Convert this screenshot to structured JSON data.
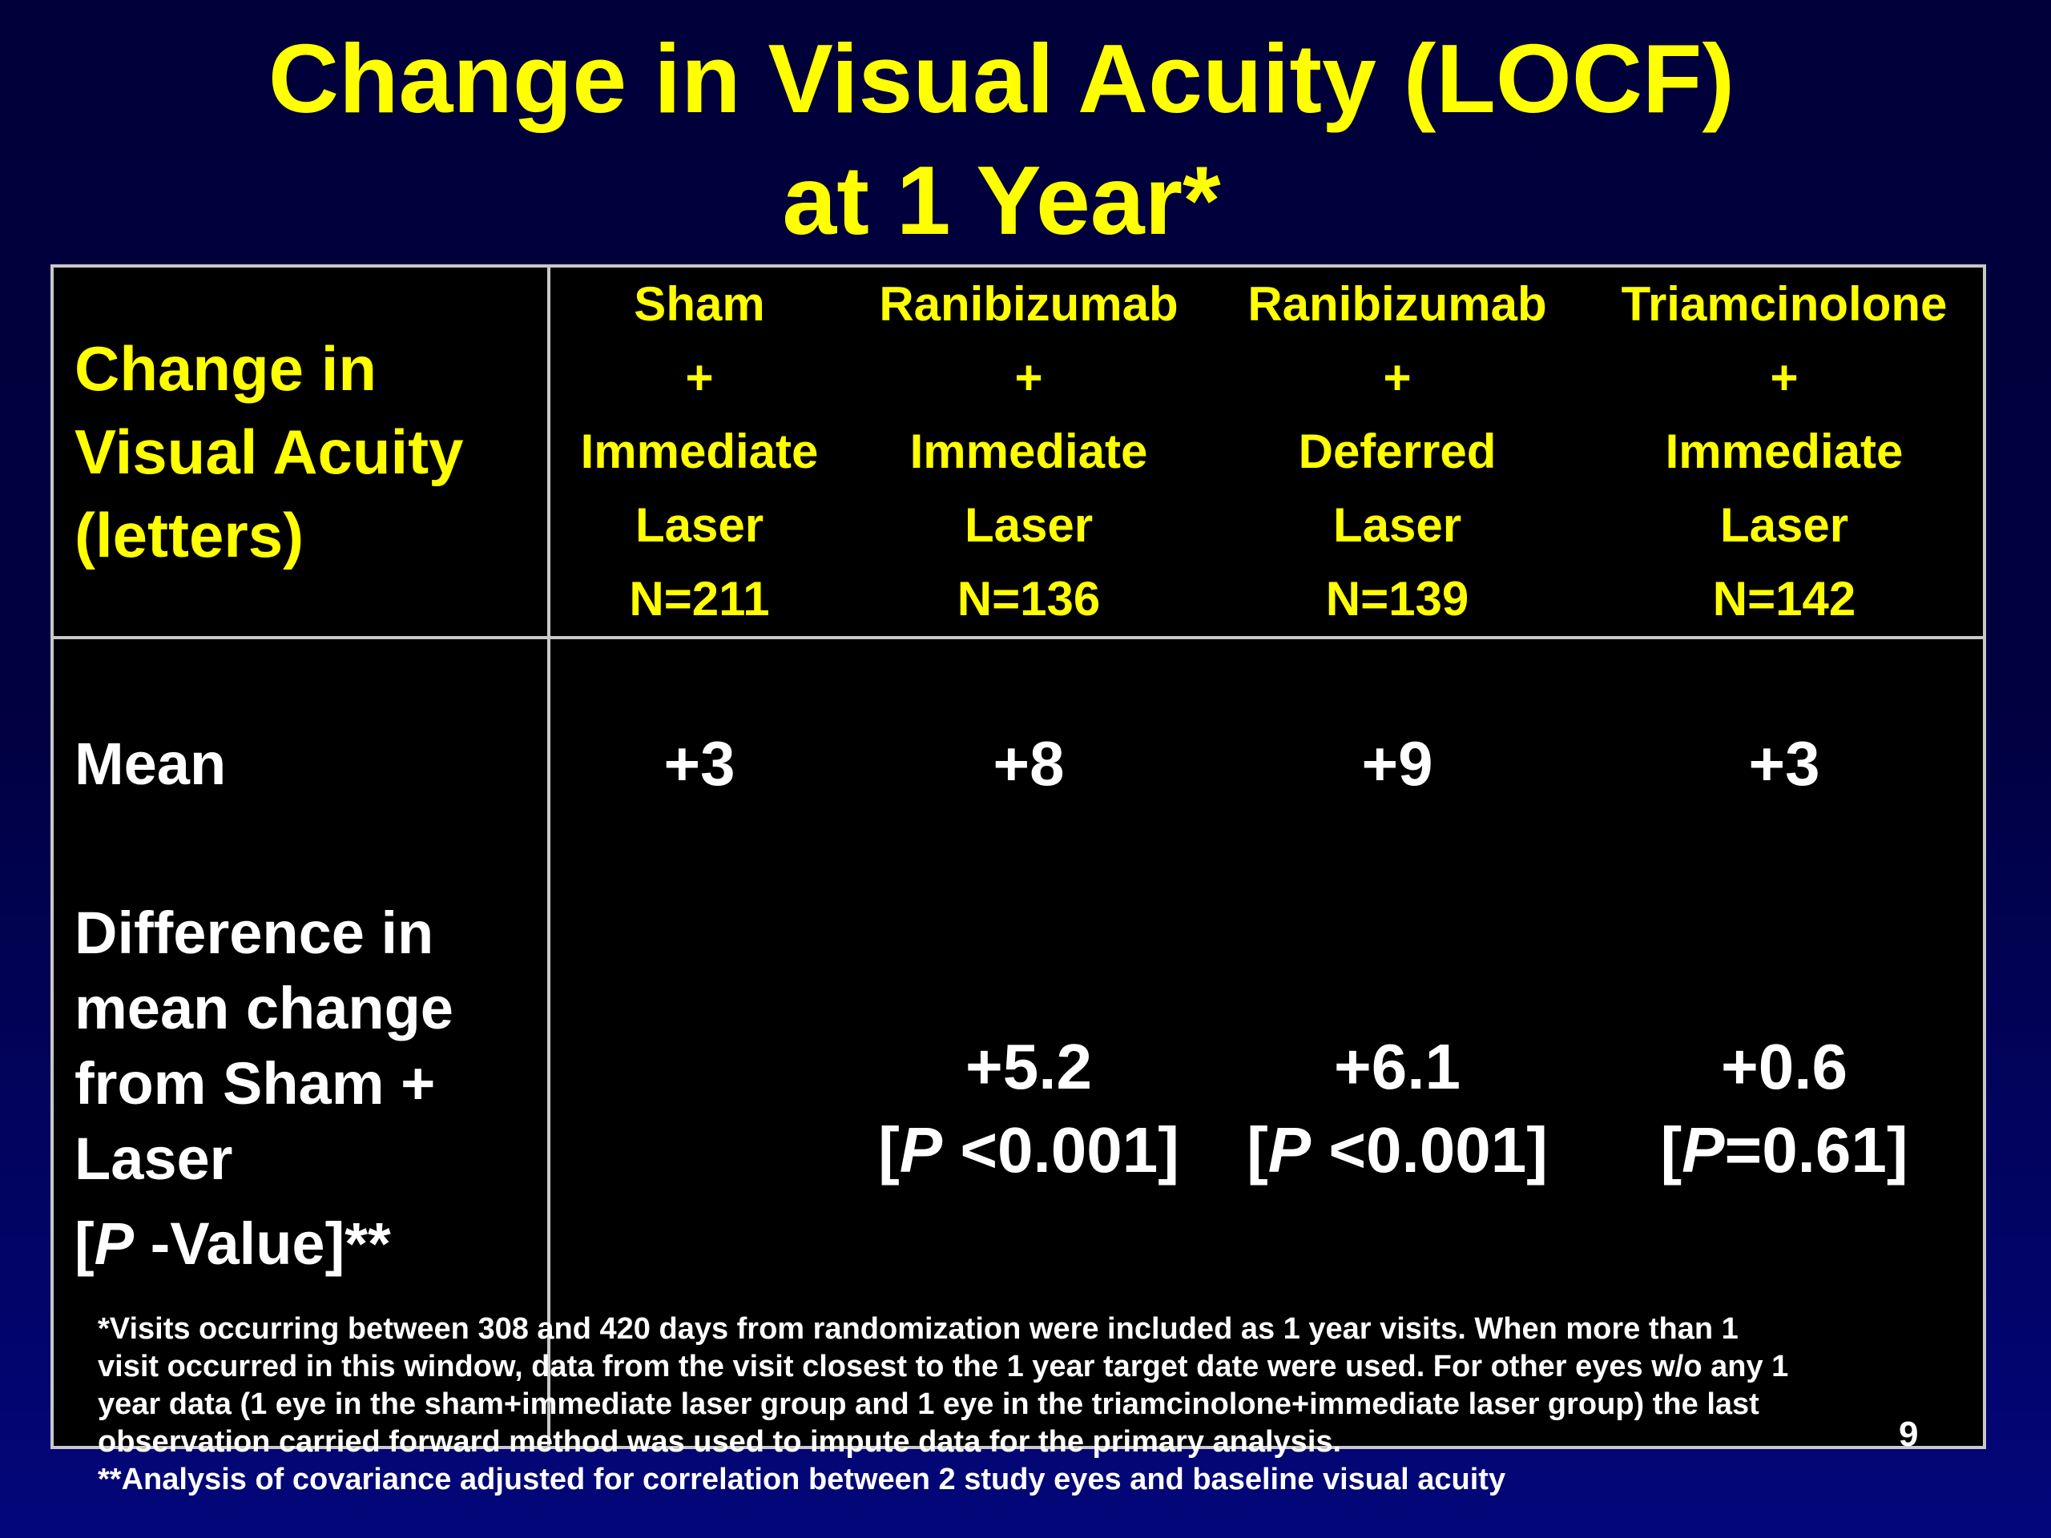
{
  "title": {
    "line1": "Change in Visual Acuity (LOCF)",
    "line2": "at 1 Year*"
  },
  "table": {
    "corner_label": [
      "Change in",
      "Visual Acuity",
      "(letters)"
    ],
    "columns": [
      {
        "line1": "Sham",
        "line2": "+",
        "line3": "Immediate",
        "line4": "Laser",
        "n": "N=211"
      },
      {
        "line1": "Ranibizumab",
        "line2": "+",
        "line3": "Immediate",
        "line4": "Laser",
        "n": "N=136"
      },
      {
        "line1": "Ranibizumab",
        "line2": "+",
        "line3": "Deferred",
        "line4": "Laser",
        "n": "N=139"
      },
      {
        "line1": "Triamcinolone",
        "line2": "+",
        "line3": "Immediate",
        "line4": "Laser",
        "n": "N=142"
      }
    ],
    "mean_row": {
      "label": "Mean",
      "values": [
        "+3",
        "+8",
        "+9",
        "+3"
      ]
    },
    "diff_row": {
      "label_lines": [
        "Difference in",
        "mean change",
        "from Sham +",
        "Laser"
      ],
      "pvalue_label": {
        "open": "[",
        "p": "P",
        "rest": " -Value]**"
      },
      "values": [
        {
          "diff": "",
          "open": "",
          "p": "",
          "rest": ""
        },
        {
          "diff": "+5.2",
          "open": "[",
          "p": "P",
          "rest": " <0.001]"
        },
        {
          "diff": "+6.1",
          "open": "[",
          "p": "P",
          "rest": " <0.001]"
        },
        {
          "diff": "+0.6",
          "open": "[",
          "p": "P",
          "rest": "=0.61]"
        }
      ]
    }
  },
  "footnotes": [
    "*Visits occurring between 308 and 420 days from randomization were included as 1 year visits. When more than 1",
    "visit occurred in this window, data from the visit closest to the 1 year target date were used. For other eyes w/o any 1",
    "year data (1 eye in the sham+immediate laser group and 1 eye in the triamcinolone+immediate laser group) the last",
    "observation carried forward method was used to impute data for the primary analysis.",
    "**Analysis of covariance adjusted for correlation between 2 study eyes and baseline visual acuity"
  ],
  "slide_number": "9",
  "colors": {
    "title": "#ffff00",
    "background_top": "#00003a",
    "background_bottom": "#03067a",
    "table_background": "#000000",
    "body_text": "#ffffff",
    "table_border": "#c8c8c8"
  }
}
